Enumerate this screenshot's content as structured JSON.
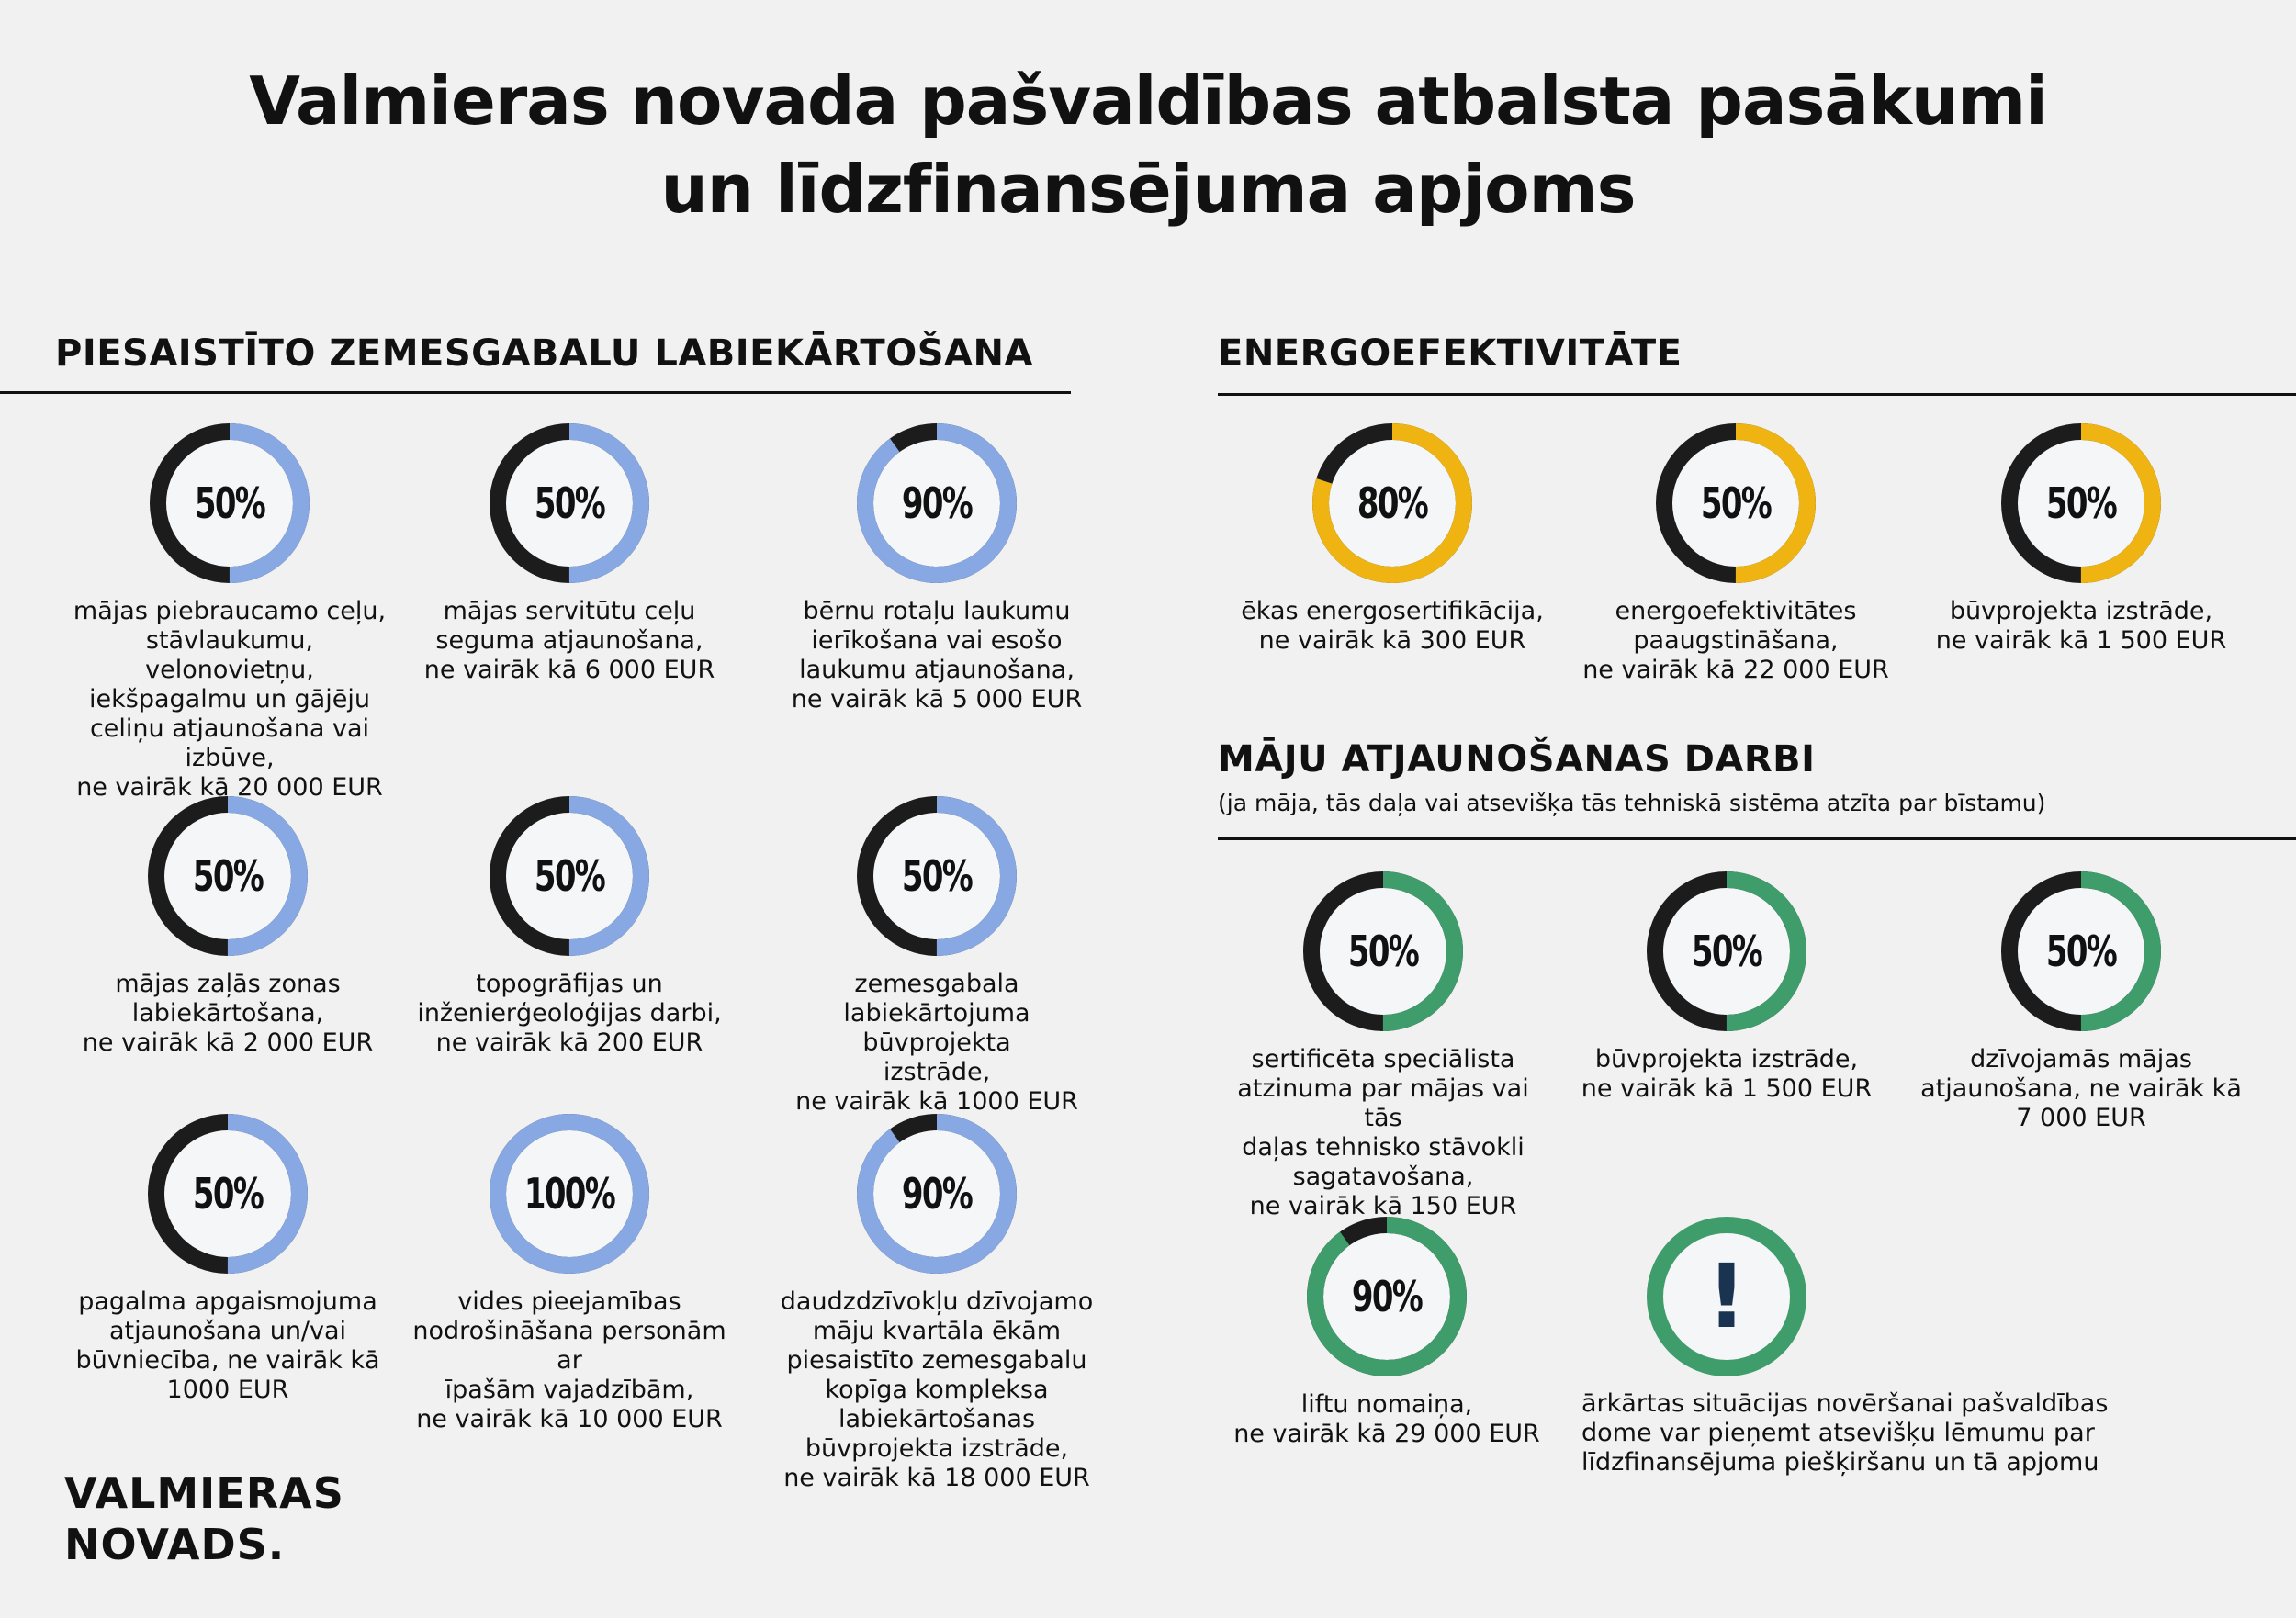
{
  "title": {
    "line1": "Valmieras novada pašvaldības atbalsta pasākumi",
    "line2": "un līdzfinansējuma apjoms"
  },
  "colors": {
    "dark": "#1c1c1c",
    "blue": "#87a8e3",
    "yellow": "#efb312",
    "green": "#3f9c6b",
    "inner": "#f4f6f8"
  },
  "left": {
    "heading": "PIESAISTĪTO ZEMESGABALU LABIEKĀRTOŠANA",
    "items": [
      {
        "pct": "50%",
        "value": 50,
        "desc": "mājas piebraucamo ceļu,\nstāvlaukumu, velonovietņu,\niekšpagalmu un gājēju\nceliņu atjaunošana vai\nizbūve,\nne vairāk kā 20 000 EUR"
      },
      {
        "pct": "50%",
        "value": 50,
        "desc": "mājas servitūtu ceļu\nseguma atjaunošana,\nne vairāk kā 6 000 EUR"
      },
      {
        "pct": "90%",
        "value": 90,
        "desc": "bērnu rotaļu laukumu\nierīkošana vai esošo\nlaukumu atjaunošana,\nne vairāk kā 5 000 EUR"
      },
      {
        "pct": "50%",
        "value": 50,
        "desc": "mājas zaļās zonas\nlabiekārtošana,\nne vairāk kā 2 000 EUR"
      },
      {
        "pct": "50%",
        "value": 50,
        "desc": "topogrāfijas un\ninženierģeoloģijas darbi,\nne vairāk kā 200 EUR"
      },
      {
        "pct": "50%",
        "value": 50,
        "desc": "zemesgabala\nlabiekārtojuma būvprojekta\nizstrāde,\nne vairāk kā 1000 EUR"
      },
      {
        "pct": "50%",
        "value": 50,
        "desc": "pagalma apgaismojuma\natjaunošana un/vai\nbūvniecība, ne vairāk kā\n1000 EUR"
      },
      {
        "pct": "100%",
        "value": 100,
        "desc": "vides pieejamības\nnodrošināšana personām ar\nīpašām vajadzībām,\nne vairāk kā 10 000 EUR"
      },
      {
        "pct": "90%",
        "value": 90,
        "desc": "daudzdzīvokļu dzīvojamo\nmāju kvartāla ēkām\npiesaistīto zemesgabalu\nkopīga kompleksa\nlabiekārtošanas\nbūvprojekta izstrāde,\nne vairāk kā 18 000 EUR"
      }
    ]
  },
  "energy": {
    "heading": "ENERGOEFEKTIVITĀTE",
    "items": [
      {
        "pct": "80%",
        "value": 80,
        "desc": "ēkas energosertifikācija,\nne vairāk kā 300 EUR"
      },
      {
        "pct": "50%",
        "value": 50,
        "desc": "energoefektivitātes\npaaugstināšana,\nne vairāk kā 22 000 EUR"
      },
      {
        "pct": "50%",
        "value": 50,
        "desc": "būvprojekta izstrāde,\nne vairāk kā 1 500 EUR"
      }
    ]
  },
  "renovation": {
    "heading": "MĀJU ATJAUNOŠANAS DARBI",
    "subheading": "(ja māja, tās daļa vai atsevišķa tās tehniskā sistēma atzīta par bīstamu)",
    "items": [
      {
        "pct": "50%",
        "value": 50,
        "desc": "sertificēta speciālista\natzinuma par mājas vai tās\ndaļas tehnisko stāvokli\nsagatavošana,\nne vairāk kā 150 EUR"
      },
      {
        "pct": "50%",
        "value": 50,
        "desc": "būvprojekta izstrāde,\nne vairāk kā 1 500 EUR"
      },
      {
        "pct": "50%",
        "value": 50,
        "desc": "dzīvojamās mājas\natjaunošana, ne vairāk kā\n7 000 EUR"
      },
      {
        "pct": "90%",
        "value": 90,
        "desc": "liftu nomaiņa,\nne vairāk kā 29 000 EUR"
      }
    ],
    "alert": {
      "symbol": "!",
      "desc": "ārkārtas situācijas novēršanai pašvaldības\ndome var pieņemt atsevišķu lēmumu par\nlīdzfinansējuma piešķiršanu un tā apjomu"
    }
  },
  "logo": "VALMIERAS\nNOVADS."
}
